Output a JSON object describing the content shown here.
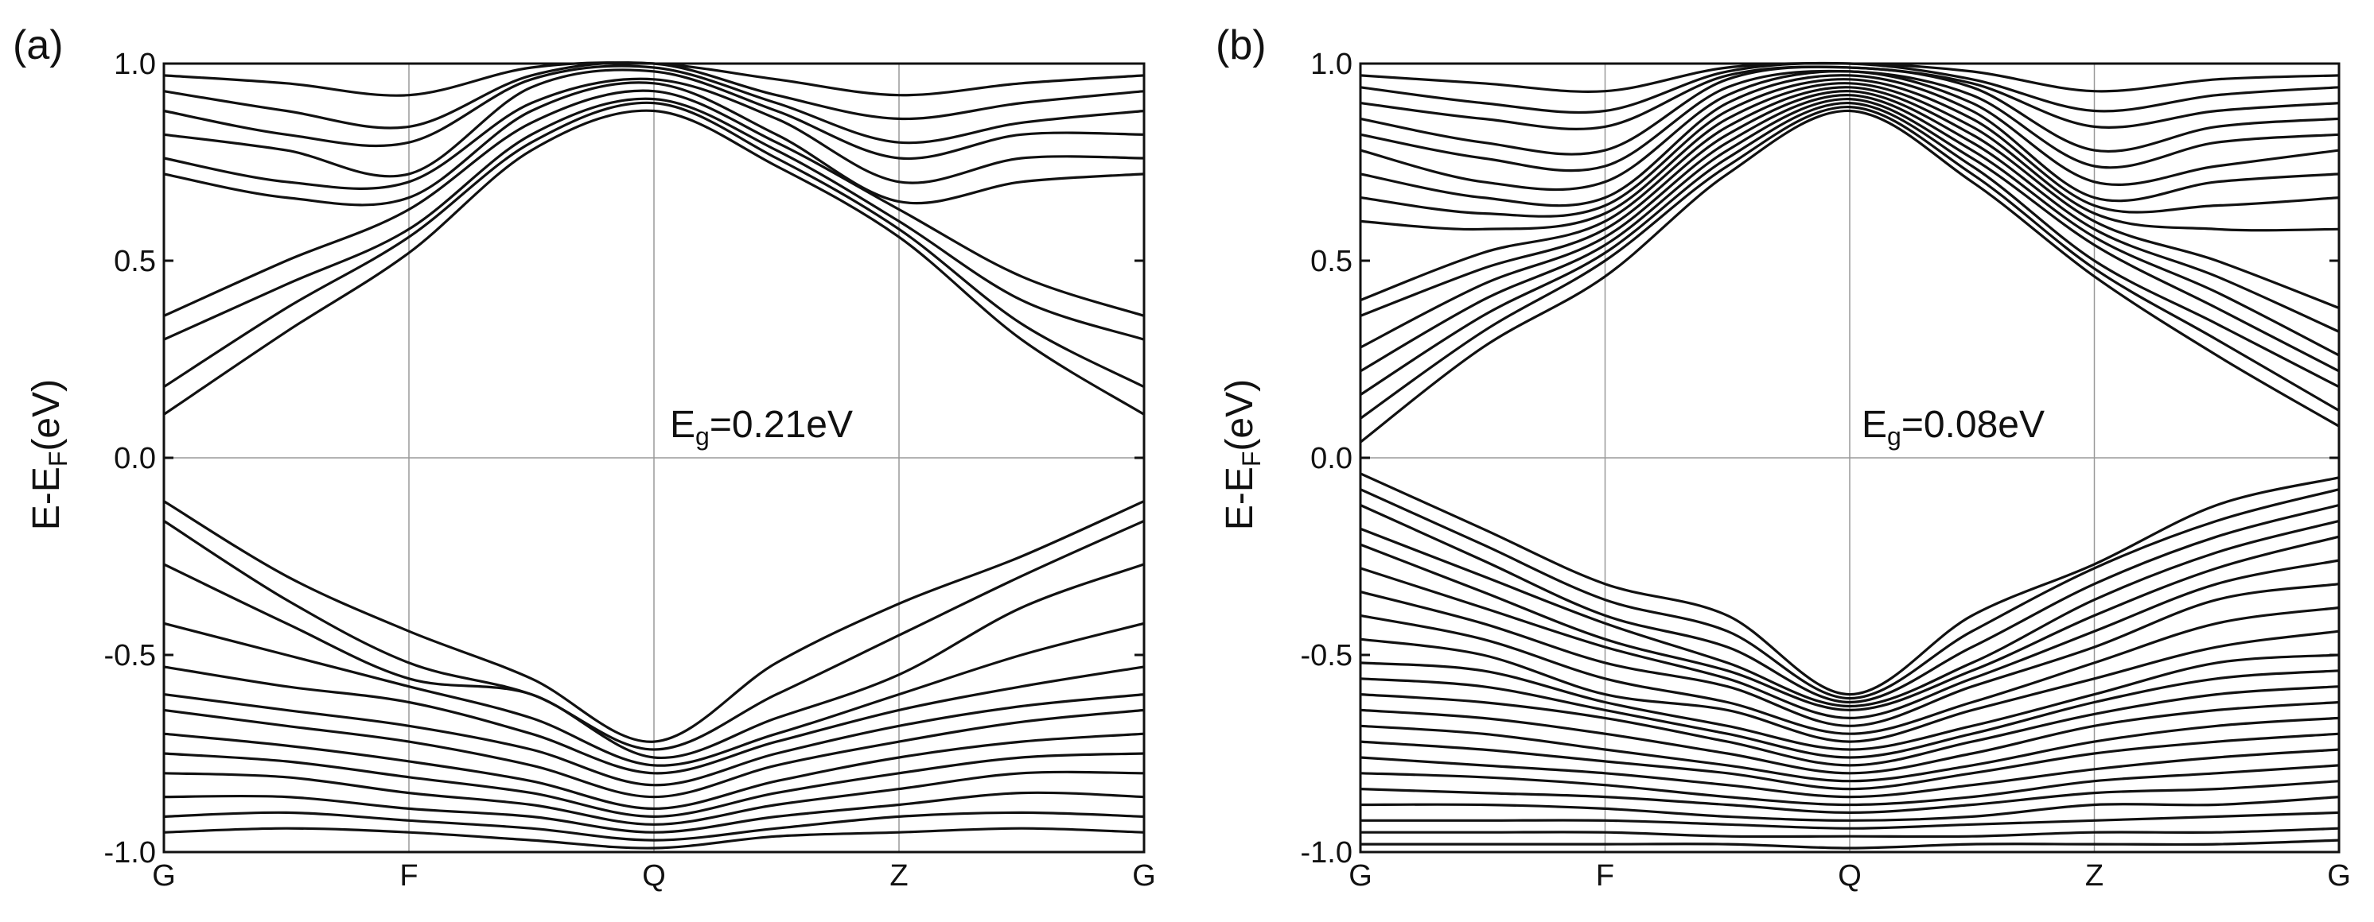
{
  "figure_title": "Band structures",
  "chart_data": [
    {
      "type": "line",
      "panel_label": "(a)",
      "title": "",
      "xlabel": "",
      "ylabel": "E-E_F(eV)",
      "ylabel_main": "E-E",
      "ylabel_sub": "F",
      "ylabel_tail": "(eV)",
      "ylim": [
        -1.0,
        1.0
      ],
      "y_ticks": [
        1.0,
        0.5,
        0.0,
        -0.5,
        -1.0
      ],
      "y_tick_labels": [
        "1.0",
        "0.5",
        "0.0",
        "-0.5",
        "-1.0"
      ],
      "x_points": [
        "G",
        "F",
        "Q",
        "Z",
        "G"
      ],
      "annotation_main": "E",
      "annotation_sub": "g",
      "annotation_tail": "=0.21eV",
      "band_gap_eV": 0.21,
      "x_samples": [
        0,
        0.5,
        1,
        1.5,
        2,
        2.5,
        3,
        3.5,
        4
      ],
      "series": [
        {
          "name": "cb1",
          "values": [
            0.11,
            0.32,
            0.52,
            0.78,
            0.88,
            0.74,
            0.56,
            0.3,
            0.11
          ]
        },
        {
          "name": "cb2",
          "values": [
            0.18,
            0.38,
            0.56,
            0.8,
            0.9,
            0.76,
            0.58,
            0.34,
            0.18
          ]
        },
        {
          "name": "cb3",
          "values": [
            0.3,
            0.44,
            0.58,
            0.82,
            0.91,
            0.78,
            0.6,
            0.4,
            0.3
          ]
        },
        {
          "name": "cb4",
          "values": [
            0.36,
            0.5,
            0.63,
            0.85,
            0.93,
            0.8,
            0.63,
            0.46,
            0.36
          ]
        },
        {
          "name": "cb5",
          "values": [
            0.72,
            0.66,
            0.66,
            0.88,
            0.95,
            0.82,
            0.65,
            0.7,
            0.72
          ]
        },
        {
          "name": "cb6",
          "values": [
            0.76,
            0.7,
            0.7,
            0.9,
            0.96,
            0.86,
            0.7,
            0.76,
            0.76
          ]
        },
        {
          "name": "cb7",
          "values": [
            0.82,
            0.78,
            0.72,
            0.94,
            0.98,
            0.88,
            0.76,
            0.82,
            0.82
          ]
        },
        {
          "name": "cb8",
          "values": [
            0.88,
            0.82,
            0.8,
            0.96,
            0.99,
            0.9,
            0.8,
            0.85,
            0.88
          ]
        },
        {
          "name": "cb9",
          "values": [
            0.93,
            0.88,
            0.84,
            0.97,
            1.0,
            0.92,
            0.86,
            0.9,
            0.93
          ]
        },
        {
          "name": "cb10",
          "values": [
            0.97,
            0.95,
            0.92,
            0.99,
            1.0,
            0.96,
            0.92,
            0.95,
            0.97
          ]
        },
        {
          "name": "vb1",
          "values": [
            -0.11,
            -0.3,
            -0.44,
            -0.56,
            -0.72,
            -0.52,
            -0.37,
            -0.25,
            -0.11
          ]
        },
        {
          "name": "vb2",
          "values": [
            -0.16,
            -0.36,
            -0.52,
            -0.6,
            -0.74,
            -0.6,
            -0.45,
            -0.3,
            -0.16
          ]
        },
        {
          "name": "vb3",
          "values": [
            -0.27,
            -0.42,
            -0.56,
            -0.6,
            -0.76,
            -0.66,
            -0.55,
            -0.38,
            -0.27
          ]
        },
        {
          "name": "vb4",
          "values": [
            -0.42,
            -0.5,
            -0.58,
            -0.66,
            -0.78,
            -0.7,
            -0.6,
            -0.5,
            -0.42
          ]
        },
        {
          "name": "vb5",
          "values": [
            -0.53,
            -0.58,
            -0.62,
            -0.7,
            -0.8,
            -0.72,
            -0.64,
            -0.58,
            -0.53
          ]
        },
        {
          "name": "vb6",
          "values": [
            -0.6,
            -0.64,
            -0.68,
            -0.74,
            -0.83,
            -0.75,
            -0.68,
            -0.63,
            -0.6
          ]
        },
        {
          "name": "vb7",
          "values": [
            -0.64,
            -0.68,
            -0.72,
            -0.78,
            -0.86,
            -0.78,
            -0.72,
            -0.67,
            -0.64
          ]
        },
        {
          "name": "vb8",
          "values": [
            -0.7,
            -0.73,
            -0.77,
            -0.82,
            -0.89,
            -0.82,
            -0.76,
            -0.72,
            -0.7
          ]
        },
        {
          "name": "vb9",
          "values": [
            -0.75,
            -0.77,
            -0.81,
            -0.85,
            -0.91,
            -0.85,
            -0.8,
            -0.76,
            -0.75
          ]
        },
        {
          "name": "vb10",
          "values": [
            -0.8,
            -0.81,
            -0.85,
            -0.88,
            -0.93,
            -0.88,
            -0.84,
            -0.8,
            -0.8
          ]
        },
        {
          "name": "vb11",
          "values": [
            -0.86,
            -0.86,
            -0.89,
            -0.91,
            -0.95,
            -0.91,
            -0.88,
            -0.85,
            -0.86
          ]
        },
        {
          "name": "vb12",
          "values": [
            -0.91,
            -0.9,
            -0.92,
            -0.94,
            -0.97,
            -0.94,
            -0.91,
            -0.9,
            -0.91
          ]
        },
        {
          "name": "vb13",
          "values": [
            -0.95,
            -0.94,
            -0.95,
            -0.97,
            -0.99,
            -0.96,
            -0.95,
            -0.94,
            -0.95
          ]
        }
      ]
    },
    {
      "type": "line",
      "panel_label": "(b)",
      "title": "",
      "xlabel": "",
      "ylabel": "E-E_F(eV)",
      "ylabel_main": "E-E",
      "ylabel_sub": "F",
      "ylabel_tail": "(eV)",
      "ylim": [
        -1.0,
        1.0
      ],
      "y_ticks": [
        1.0,
        0.5,
        0.0,
        -0.5,
        -1.0
      ],
      "y_tick_labels": [
        "1.0",
        "0.5",
        "0.0",
        "-0.5",
        "-1.0"
      ],
      "x_points": [
        "G",
        "F",
        "Q",
        "Z",
        "G"
      ],
      "annotation_main": "E",
      "annotation_sub": "g",
      "annotation_tail": "=0.08eV",
      "band_gap_eV": 0.08,
      "x_samples": [
        0,
        0.5,
        1,
        1.5,
        2,
        2.5,
        3,
        3.5,
        4
      ],
      "series": [
        {
          "name": "cb1",
          "values": [
            0.04,
            0.28,
            0.46,
            0.72,
            0.88,
            0.7,
            0.46,
            0.26,
            0.08
          ]
        },
        {
          "name": "cb2",
          "values": [
            0.1,
            0.32,
            0.5,
            0.74,
            0.89,
            0.72,
            0.48,
            0.3,
            0.12
          ]
        },
        {
          "name": "cb3",
          "values": [
            0.16,
            0.36,
            0.52,
            0.76,
            0.9,
            0.74,
            0.5,
            0.34,
            0.18
          ]
        },
        {
          "name": "cb4",
          "values": [
            0.22,
            0.4,
            0.54,
            0.78,
            0.91,
            0.76,
            0.54,
            0.38,
            0.22
          ]
        },
        {
          "name": "cb5",
          "values": [
            0.28,
            0.44,
            0.56,
            0.8,
            0.92,
            0.78,
            0.56,
            0.42,
            0.26
          ]
        },
        {
          "name": "cb6",
          "values": [
            0.36,
            0.48,
            0.58,
            0.82,
            0.93,
            0.8,
            0.58,
            0.46,
            0.32
          ]
        },
        {
          "name": "cb7",
          "values": [
            0.4,
            0.52,
            0.6,
            0.84,
            0.94,
            0.82,
            0.6,
            0.5,
            0.38
          ]
        },
        {
          "name": "cb8",
          "values": [
            0.6,
            0.58,
            0.62,
            0.86,
            0.95,
            0.84,
            0.62,
            0.58,
            0.58
          ]
        },
        {
          "name": "cb9",
          "values": [
            0.66,
            0.62,
            0.64,
            0.88,
            0.96,
            0.86,
            0.64,
            0.64,
            0.66
          ]
        },
        {
          "name": "cb10",
          "values": [
            0.72,
            0.66,
            0.66,
            0.9,
            0.97,
            0.88,
            0.66,
            0.7,
            0.72
          ]
        },
        {
          "name": "cb11",
          "values": [
            0.78,
            0.7,
            0.7,
            0.92,
            0.98,
            0.9,
            0.7,
            0.74,
            0.78
          ]
        },
        {
          "name": "cb12",
          "values": [
            0.82,
            0.76,
            0.74,
            0.94,
            0.98,
            0.92,
            0.74,
            0.8,
            0.82
          ]
        },
        {
          "name": "cb13",
          "values": [
            0.86,
            0.8,
            0.78,
            0.96,
            0.99,
            0.94,
            0.78,
            0.84,
            0.86
          ]
        },
        {
          "name": "cb14",
          "values": [
            0.9,
            0.86,
            0.84,
            0.97,
            0.99,
            0.95,
            0.84,
            0.88,
            0.9
          ]
        },
        {
          "name": "cb15",
          "values": [
            0.94,
            0.9,
            0.88,
            0.98,
            1.0,
            0.96,
            0.88,
            0.92,
            0.94
          ]
        },
        {
          "name": "cb16",
          "values": [
            0.97,
            0.95,
            0.93,
            0.99,
            1.0,
            0.98,
            0.93,
            0.96,
            0.97
          ]
        },
        {
          "name": "vb1",
          "values": [
            -0.04,
            -0.18,
            -0.32,
            -0.4,
            -0.6,
            -0.4,
            -0.27,
            -0.12,
            -0.05
          ]
        },
        {
          "name": "vb2",
          "values": [
            -0.08,
            -0.22,
            -0.36,
            -0.44,
            -0.61,
            -0.44,
            -0.28,
            -0.16,
            -0.08
          ]
        },
        {
          "name": "vb3",
          "values": [
            -0.12,
            -0.26,
            -0.4,
            -0.48,
            -0.62,
            -0.48,
            -0.32,
            -0.2,
            -0.12
          ]
        },
        {
          "name": "vb4",
          "values": [
            -0.18,
            -0.3,
            -0.42,
            -0.52,
            -0.63,
            -0.52,
            -0.36,
            -0.24,
            -0.16
          ]
        },
        {
          "name": "vb5",
          "values": [
            -0.22,
            -0.34,
            -0.46,
            -0.54,
            -0.64,
            -0.54,
            -0.4,
            -0.28,
            -0.2
          ]
        },
        {
          "name": "vb6",
          "values": [
            -0.28,
            -0.38,
            -0.48,
            -0.56,
            -0.66,
            -0.56,
            -0.44,
            -0.32,
            -0.26
          ]
        },
        {
          "name": "vb7",
          "values": [
            -0.34,
            -0.42,
            -0.52,
            -0.58,
            -0.68,
            -0.58,
            -0.48,
            -0.36,
            -0.32
          ]
        },
        {
          "name": "vb8",
          "values": [
            -0.4,
            -0.46,
            -0.56,
            -0.62,
            -0.7,
            -0.62,
            -0.52,
            -0.42,
            -0.38
          ]
        },
        {
          "name": "vb9",
          "values": [
            -0.46,
            -0.5,
            -0.6,
            -0.64,
            -0.72,
            -0.64,
            -0.56,
            -0.48,
            -0.44
          ]
        },
        {
          "name": "vb10",
          "values": [
            -0.52,
            -0.54,
            -0.62,
            -0.68,
            -0.74,
            -0.68,
            -0.6,
            -0.52,
            -0.5
          ]
        },
        {
          "name": "vb11",
          "values": [
            -0.56,
            -0.58,
            -0.64,
            -0.7,
            -0.76,
            -0.7,
            -0.62,
            -0.56,
            -0.54
          ]
        },
        {
          "name": "vb12",
          "values": [
            -0.6,
            -0.62,
            -0.66,
            -0.72,
            -0.78,
            -0.72,
            -0.65,
            -0.6,
            -0.58
          ]
        },
        {
          "name": "vb13",
          "values": [
            -0.64,
            -0.66,
            -0.7,
            -0.75,
            -0.8,
            -0.75,
            -0.68,
            -0.64,
            -0.62
          ]
        },
        {
          "name": "vb14",
          "values": [
            -0.68,
            -0.7,
            -0.74,
            -0.78,
            -0.82,
            -0.78,
            -0.72,
            -0.68,
            -0.66
          ]
        },
        {
          "name": "vb15",
          "values": [
            -0.72,
            -0.74,
            -0.77,
            -0.8,
            -0.84,
            -0.8,
            -0.75,
            -0.72,
            -0.7
          ]
        },
        {
          "name": "vb16",
          "values": [
            -0.76,
            -0.78,
            -0.8,
            -0.83,
            -0.86,
            -0.83,
            -0.79,
            -0.76,
            -0.74
          ]
        },
        {
          "name": "vb17",
          "values": [
            -0.8,
            -0.81,
            -0.83,
            -0.86,
            -0.88,
            -0.86,
            -0.82,
            -0.8,
            -0.78
          ]
        },
        {
          "name": "vb18",
          "values": [
            -0.84,
            -0.85,
            -0.86,
            -0.88,
            -0.9,
            -0.88,
            -0.85,
            -0.84,
            -0.82
          ]
        },
        {
          "name": "vb19",
          "values": [
            -0.88,
            -0.88,
            -0.89,
            -0.91,
            -0.92,
            -0.91,
            -0.88,
            -0.88,
            -0.86
          ]
        },
        {
          "name": "vb20",
          "values": [
            -0.92,
            -0.92,
            -0.92,
            -0.93,
            -0.94,
            -0.93,
            -0.92,
            -0.91,
            -0.9
          ]
        },
        {
          "name": "vb21",
          "values": [
            -0.95,
            -0.95,
            -0.95,
            -0.96,
            -0.96,
            -0.96,
            -0.95,
            -0.95,
            -0.94
          ]
        },
        {
          "name": "vb22",
          "values": [
            -0.98,
            -0.98,
            -0.98,
            -0.98,
            -0.99,
            -0.98,
            -0.98,
            -0.98,
            -0.97
          ]
        }
      ]
    }
  ]
}
